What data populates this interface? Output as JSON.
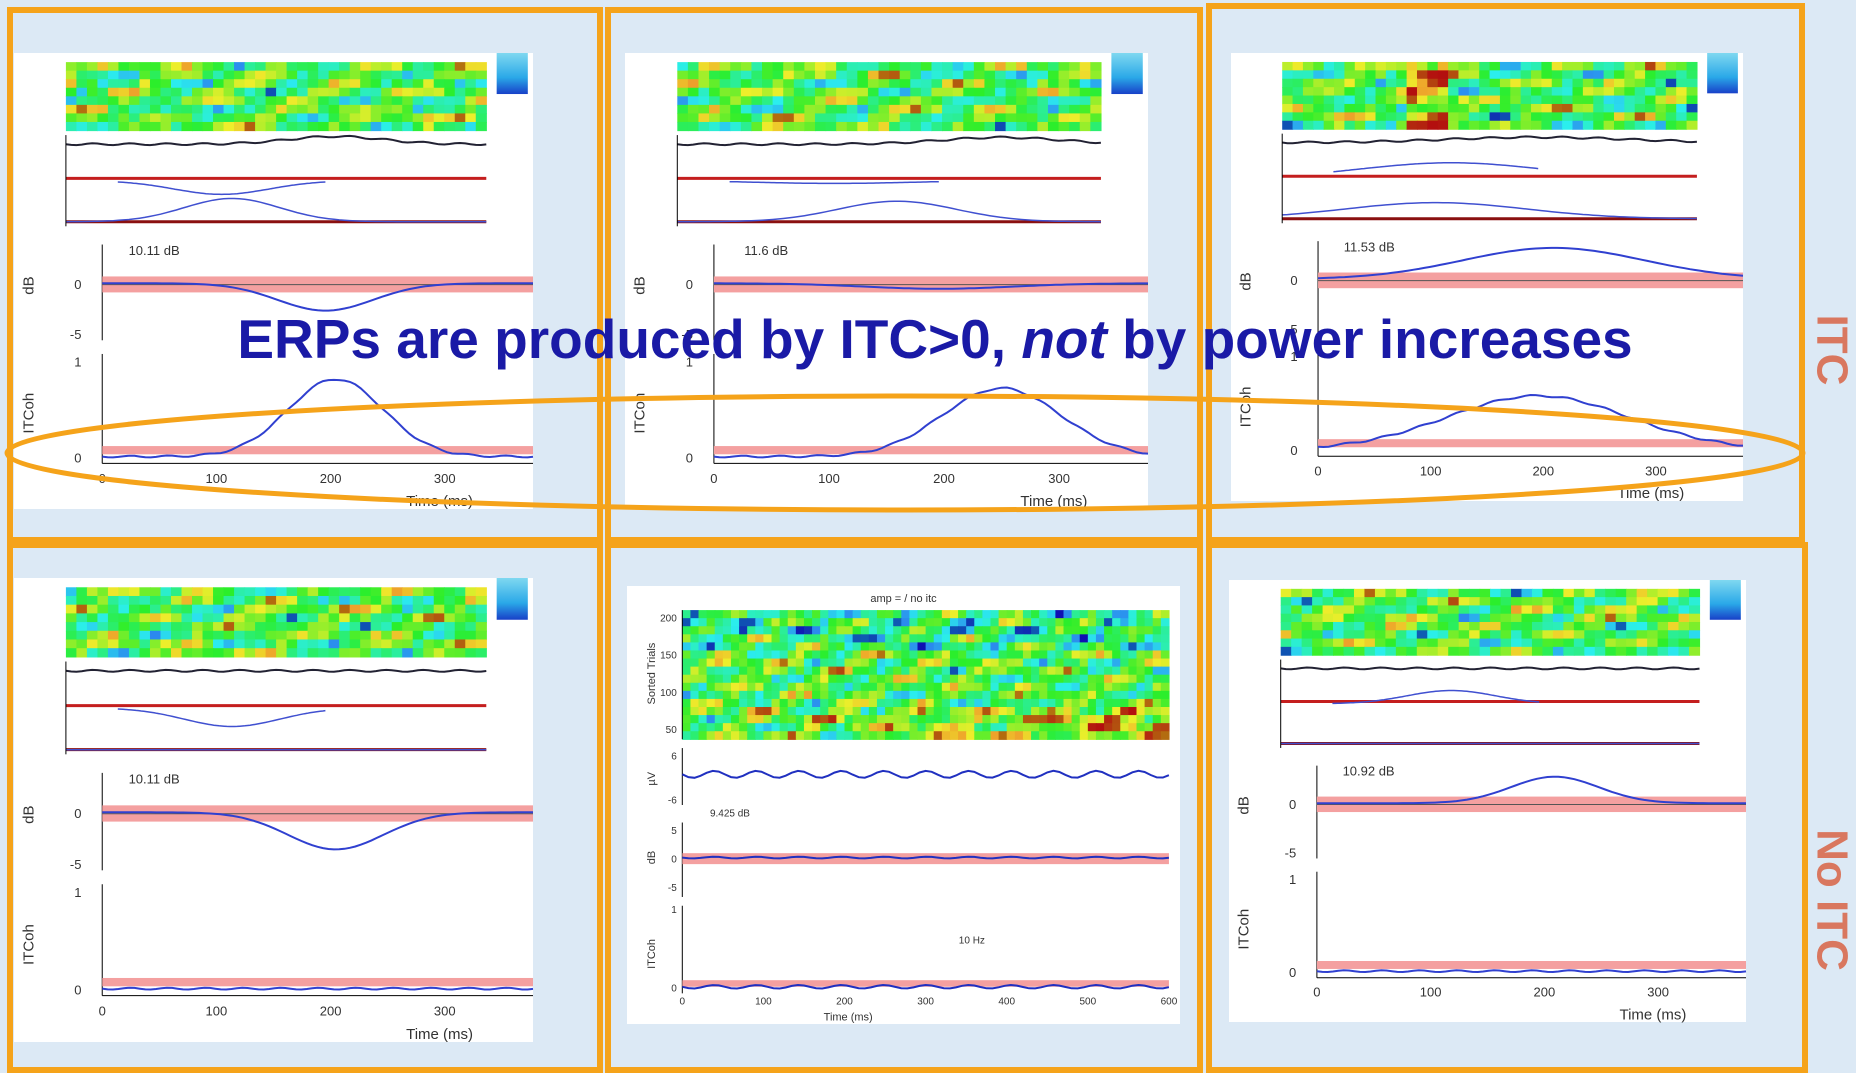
{
  "slide": {
    "title": {
      "before": "ERPs are produced by ITC>0, ",
      "emphasis": "not",
      "after": " by power increases"
    },
    "row_labels": [
      "ITC",
      "No ITC"
    ],
    "panels": [
      {
        "db_label": "10.11 dB",
        "db_axis": "dB",
        "db_ticks": [
          "0",
          "-5"
        ],
        "itc_axis": "ITCoh",
        "itc_ticks": [
          "1",
          "0"
        ],
        "x_ticks": [
          "0",
          "100",
          "200",
          "300"
        ],
        "x_label": "Time (ms)"
      },
      {
        "db_label": "11.6 dB",
        "db_axis": "dB",
        "db_ticks": [
          "0",
          "-5"
        ],
        "itc_axis": "ITCoh",
        "itc_ticks": [
          "1",
          "0"
        ],
        "x_ticks": [
          "0",
          "100",
          "200",
          "300"
        ],
        "x_label": "Time (ms)"
      },
      {
        "db_label": "11.53 dB",
        "db_axis": "dB",
        "db_ticks": [
          "0",
          "-5"
        ],
        "itc_axis": "ITCoh",
        "itc_ticks": [
          "1",
          "0"
        ],
        "x_ticks": [
          "0",
          "100",
          "200",
          "300"
        ],
        "x_label": "Time (ms)"
      },
      {
        "db_label": "10.11 dB",
        "db_axis": "dB",
        "db_ticks": [
          "0",
          "-5"
        ],
        "itc_axis": "ITCoh",
        "itc_ticks": [
          "1",
          "0"
        ],
        "x_ticks": [
          "0",
          "100",
          "200",
          "300"
        ],
        "x_label": "Time (ms)"
      },
      {
        "title": "amp = / no itc",
        "trials_axis": "Sorted Trials",
        "trials_ticks": [
          "200",
          "150",
          "100",
          "50"
        ],
        "uv_axis": "µV",
        "uv_ticks": [
          "6",
          "-6"
        ],
        "db_label": "9.425 dB",
        "db_axis": "dB",
        "db_ticks": [
          "5",
          "0",
          "-5"
        ],
        "itc_axis": "ITCoh",
        "itc_ticks": [
          "1",
          "0"
        ],
        "freq_label": "10 Hz",
        "x_ticks": [
          "0",
          "100",
          "200",
          "300",
          "400",
          "500",
          "600"
        ],
        "x_label": "Time (ms)"
      },
      {
        "db_label": "10.92 dB",
        "db_axis": "dB",
        "db_ticks": [
          "0",
          "-5"
        ],
        "itc_axis": "ITCoh",
        "itc_ticks": [
          "1",
          "0"
        ],
        "x_ticks": [
          "0",
          "100",
          "200",
          "300"
        ],
        "x_label": "Time (ms)"
      }
    ]
  }
}
